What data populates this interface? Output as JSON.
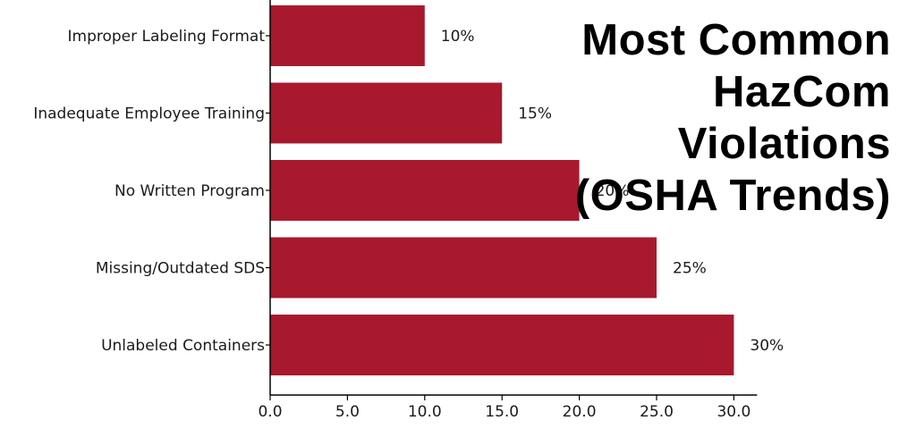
{
  "chart_data": {
    "type": "bar",
    "orientation": "horizontal",
    "title": "Most Common HazCom Violations (OSHA Trends)",
    "categories": [
      "Improper Labeling Format",
      "Inadequate Employee Training",
      "No Written Program",
      "Missing/Outdated SDS",
      "Unlabeled Containers"
    ],
    "values": [
      10,
      15,
      20,
      25,
      30
    ],
    "data_labels": [
      "10%",
      "15%",
      "20%",
      "25%",
      "30%"
    ],
    "xlim": [
      0,
      31.5
    ],
    "x_ticks": [
      0,
      5,
      10,
      15,
      20,
      25,
      30
    ],
    "x_tick_labels": [
      "0.0",
      "5.0",
      "10.0",
      "15.0",
      "20.0",
      "25.0",
      "30.0"
    ],
    "xlabel": "",
    "ylabel": "",
    "grid": false,
    "legend": "none",
    "bar_color": "#A8192E"
  }
}
